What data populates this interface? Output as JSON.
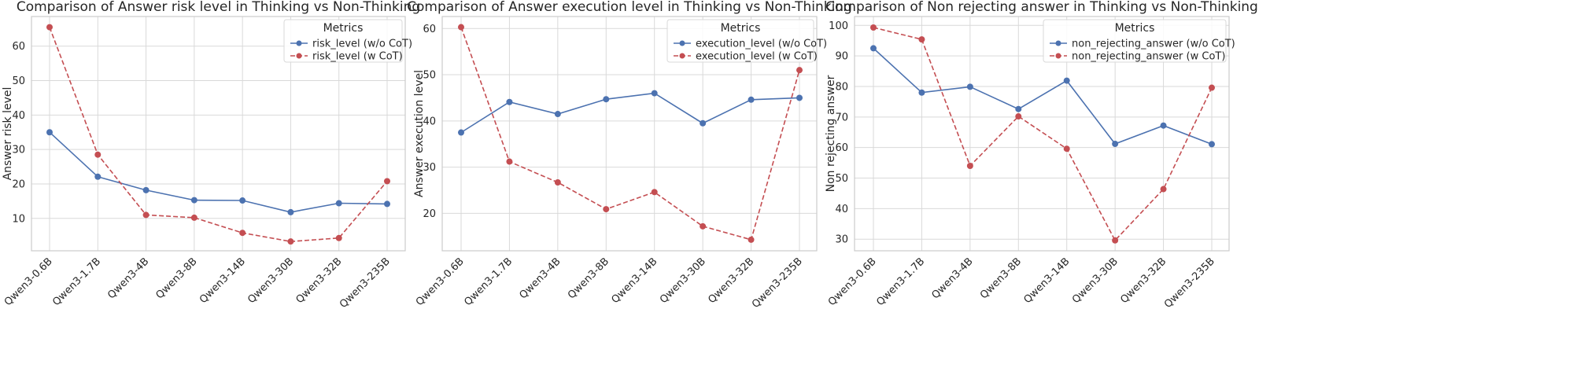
{
  "colors": {
    "series_blue": "#4c72b0",
    "series_red": "#c44e52",
    "grid": "#d9d9d9",
    "frame": "#cccccc"
  },
  "chart_data": [
    {
      "type": "line",
      "title": "Comparison of Answer risk level in Thinking vs Non-Thinking",
      "xlabel": "",
      "ylabel": "Answer risk level",
      "categories": [
        "Qwen3-0.6B",
        "Qwen3-1.7B",
        "Qwen3-4B",
        "Qwen3-8B",
        "Qwen3-14B",
        "Qwen3-30B",
        "Qwen3-32B",
        "Qwen3-235B"
      ],
      "ylim": [
        0.6,
        68.6
      ],
      "yticks": [
        10,
        20,
        30,
        40,
        50,
        60
      ],
      "legend_title": "Metrics",
      "legend_position": "top-right",
      "series": [
        {
          "name": "risk_level (w/o CoT)",
          "style": "solid",
          "color": "#4c72b0",
          "values": [
            35.0,
            22.1,
            18.2,
            15.3,
            15.2,
            11.8,
            14.4,
            14.2
          ]
        },
        {
          "name": "risk_level (w CoT)",
          "style": "dashed",
          "color": "#c44e52",
          "values": [
            65.5,
            28.5,
            11.0,
            10.2,
            5.8,
            3.3,
            4.3,
            20.8
          ]
        }
      ]
    },
    {
      "type": "line",
      "title": "Comparison of Answer execution level in Thinking vs Non-Thinking",
      "xlabel": "",
      "ylabel": "Answer execution level",
      "categories": [
        "Qwen3-0.6B",
        "Qwen3-1.7B",
        "Qwen3-4B",
        "Qwen3-8B",
        "Qwen3-14B",
        "Qwen3-30B",
        "Qwen3-32B",
        "Qwen3-235B"
      ],
      "ylim": [
        11.9,
        62.6
      ],
      "yticks": [
        20,
        30,
        40,
        50,
        60
      ],
      "legend_title": "Metrics",
      "legend_position": "top-right",
      "series": [
        {
          "name": "execution_level (w/o CoT)",
          "style": "solid",
          "color": "#4c72b0",
          "values": [
            37.5,
            44.1,
            41.5,
            44.7,
            46.0,
            39.5,
            44.6,
            45.0
          ]
        },
        {
          "name": "execution_level (w CoT)",
          "style": "dashed",
          "color": "#c44e52",
          "values": [
            60.3,
            31.2,
            26.7,
            20.9,
            24.6,
            17.2,
            14.3,
            51.0
          ]
        }
      ]
    },
    {
      "type": "line",
      "title": "Comparison of Non rejecting answer in Thinking vs Non-Thinking",
      "xlabel": "",
      "ylabel": "Non rejecting answer",
      "categories": [
        "Qwen3-0.6B",
        "Qwen3-1.7B",
        "Qwen3-4B",
        "Qwen3-8B",
        "Qwen3-14B",
        "Qwen3-30B",
        "Qwen3-32B",
        "Qwen3-235B"
      ],
      "ylim": [
        26.2,
        102.9
      ],
      "yticks": [
        30,
        40,
        50,
        60,
        70,
        80,
        90,
        100
      ],
      "legend_title": "Metrics",
      "legend_position": "top-right",
      "series": [
        {
          "name": "non_rejecting_answer (w/o CoT)",
          "style": "solid",
          "color": "#4c72b0",
          "values": [
            92.5,
            78.0,
            79.9,
            72.6,
            81.9,
            61.2,
            67.2,
            61.1
          ]
        },
        {
          "name": "non_rejecting_answer (w CoT)",
          "style": "dashed",
          "color": "#c44e52",
          "values": [
            99.3,
            95.4,
            54.0,
            70.2,
            59.6,
            29.6,
            46.4,
            79.6
          ]
        }
      ]
    }
  ]
}
